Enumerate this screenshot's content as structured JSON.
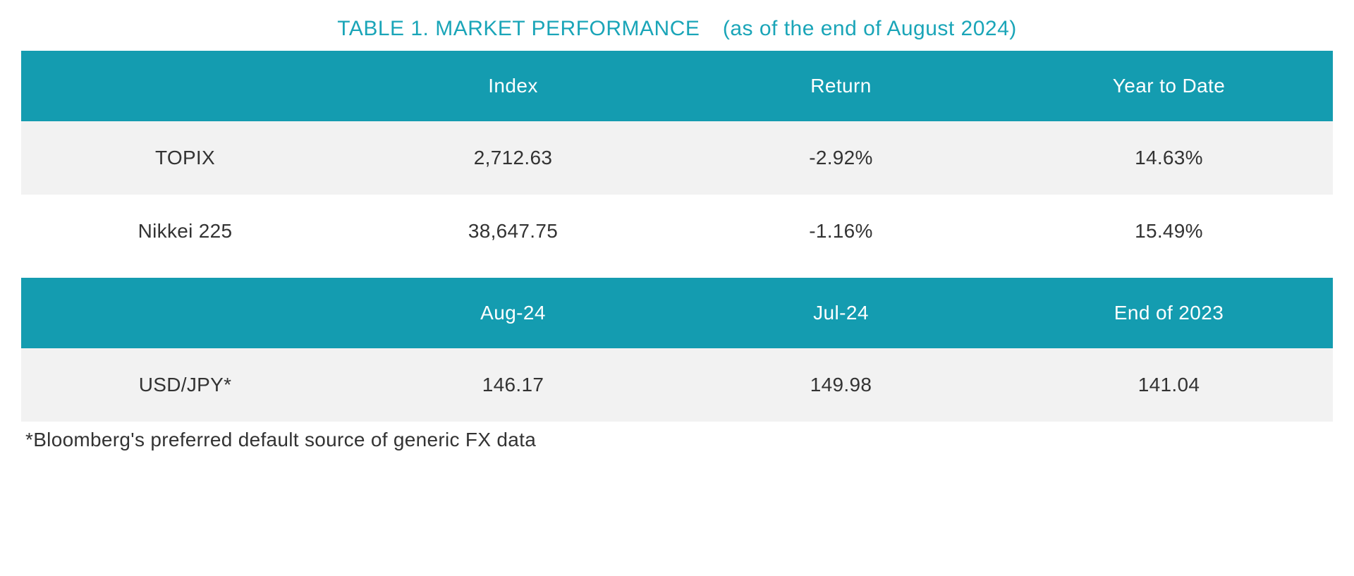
{
  "title": {
    "main": "TABLE 1. MARKET PERFORMANCE",
    "sub": "(as of the end of August 2024)"
  },
  "colors": {
    "accent": "#149cb0",
    "title_text": "#1aa5b8",
    "header_text": "#ffffff",
    "body_text": "#333333",
    "row_alt_bg": "#f2f2f2",
    "row_white_bg": "#ffffff"
  },
  "typography": {
    "title_fontsize": 30,
    "header_fontsize": 28,
    "cell_fontsize": 28,
    "footnote_fontsize": 28,
    "font_family": "Segoe UI"
  },
  "layout": {
    "column_widths_pct": [
      25,
      25,
      25,
      25
    ],
    "cell_padding_v": 36,
    "header_padding_v": 34,
    "table_gap": 14
  },
  "table1": {
    "type": "table",
    "columns": [
      "",
      "Index",
      "Return",
      "Year to Date"
    ],
    "rows": [
      {
        "label": "TOPIX",
        "index": "2,712.63",
        "return": "-2.92%",
        "ytd": "14.63%",
        "bg": "alt"
      },
      {
        "label": "Nikkei 225",
        "index": "38,647.75",
        "return": "-1.16%",
        "ytd": "15.49%",
        "bg": "white"
      }
    ]
  },
  "table2": {
    "type": "table",
    "columns": [
      "",
      "Aug-24",
      "Jul-24",
      "End of 2023"
    ],
    "rows": [
      {
        "label": "USD/JPY*",
        "aug24": "146.17",
        "jul24": "149.98",
        "end2023": "141.04",
        "bg": "alt"
      }
    ]
  },
  "footnote": "*Bloomberg's preferred default source of generic FX data"
}
